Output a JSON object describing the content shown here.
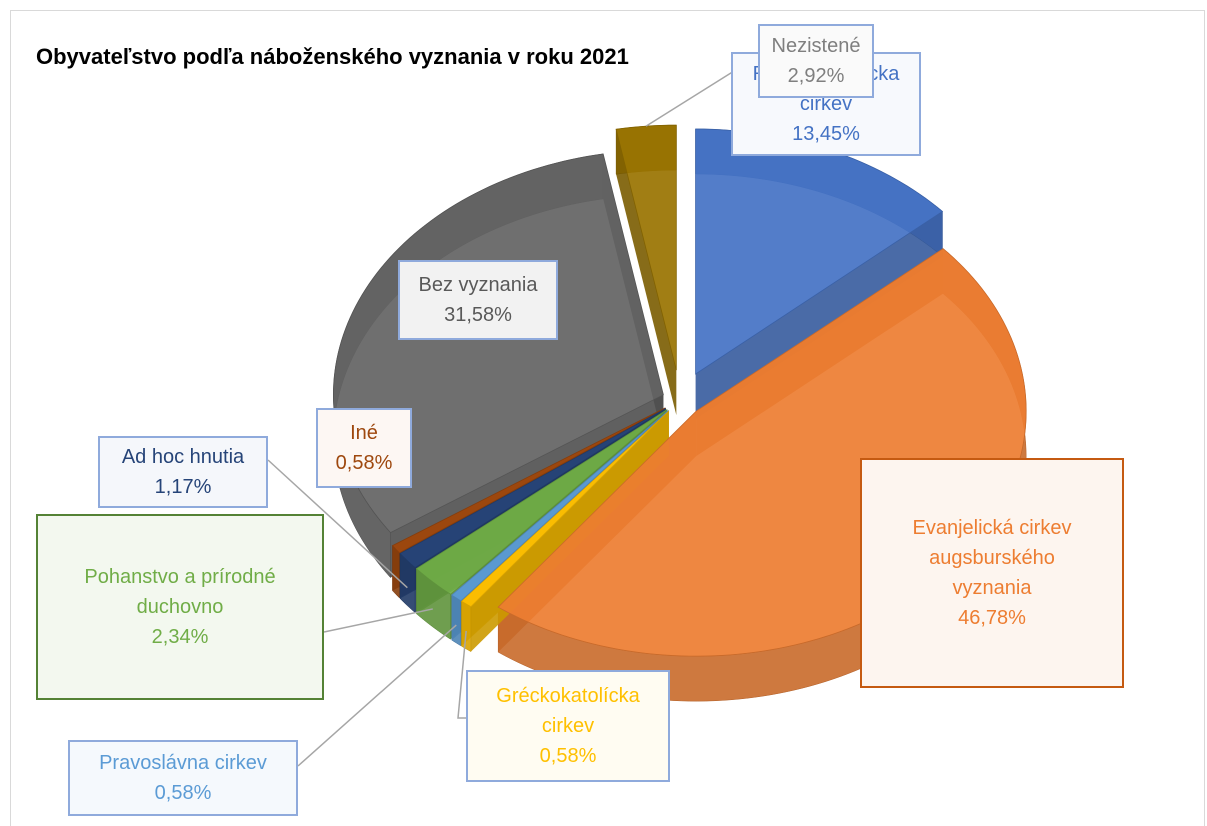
{
  "chart_data": {
    "type": "pie3d",
    "title": "Obyvateľstvo podľa náboženského vyznania v roku 2021",
    "categories": [
      "Rímskokatolícka cirkev",
      "Evanjelická cirkev augsburského vyznania",
      "Gréckokatolícka cirkev",
      "Pravoslávna cirkev",
      "Pohanstvo a prírodné duchovno",
      "Ad hoc hnutia",
      "Iné",
      "Bez vyznania",
      "Nezistené"
    ],
    "values": [
      13.45,
      46.78,
      0.58,
      0.58,
      2.34,
      1.17,
      0.58,
      31.58,
      2.92
    ],
    "value_labels": [
      "13,45%",
      "46,78%",
      "0,58%",
      "0,58%",
      "2,34%",
      "1,17%",
      "0,58%",
      "31,58%",
      "2,92%"
    ],
    "colors": [
      "#4472c4",
      "#ed7d31",
      "#ffc000",
      "#5b9bd5",
      "#70ad47",
      "#264478",
      "#9e480e",
      "#636363",
      "#997300"
    ]
  }
}
